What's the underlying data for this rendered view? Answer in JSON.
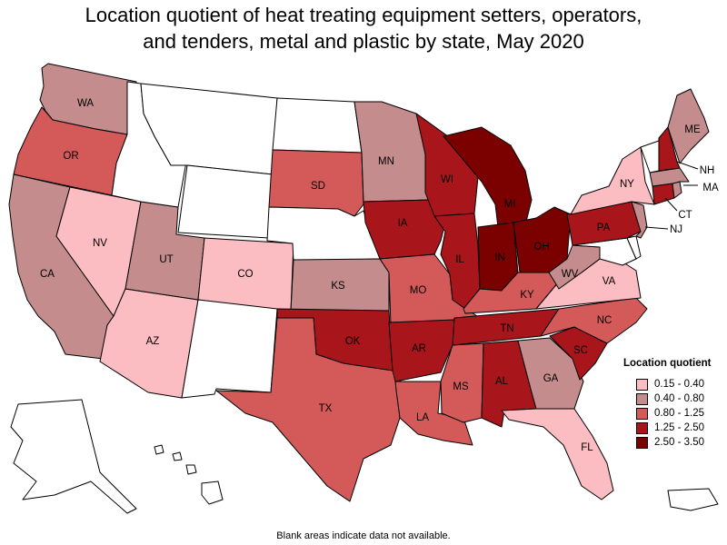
{
  "title_lines": [
    "Location quotient of heat treating equipment setters, operators,",
    "and tenders, metal and plastic by state, May 2020"
  ],
  "legend": {
    "title": "Location quotient",
    "items": [
      {
        "label": "0.15 - 0.40",
        "color": "#fbbcc2"
      },
      {
        "label": "0.40 - 0.80",
        "color": "#c48c8c"
      },
      {
        "label": "0.80 - 1.25",
        "color": "#d45a5a"
      },
      {
        "label": "1.25 - 2.50",
        "color": "#a8161c"
      },
      {
        "label": "2.50 - 3.50",
        "color": "#7b0000"
      }
    ]
  },
  "footnote": "Blank areas indicate data not available.",
  "no_data_color": "#ffffff",
  "states": [
    {
      "abbr": "WA",
      "class": 1
    },
    {
      "abbr": "OR",
      "class": 2
    },
    {
      "abbr": "CA",
      "class": 1
    },
    {
      "abbr": "NV",
      "class": 0
    },
    {
      "abbr": "AZ",
      "class": 0
    },
    {
      "abbr": "UT",
      "class": 1
    },
    {
      "abbr": "CO",
      "class": 0
    },
    {
      "abbr": "ID",
      "class": null
    },
    {
      "abbr": "MT",
      "class": null
    },
    {
      "abbr": "WY",
      "class": null
    },
    {
      "abbr": "NM",
      "class": null
    },
    {
      "abbr": "ND",
      "class": null
    },
    {
      "abbr": "SD",
      "class": 2
    },
    {
      "abbr": "NE",
      "class": null
    },
    {
      "abbr": "KS",
      "class": 1
    },
    {
      "abbr": "OK",
      "class": 3
    },
    {
      "abbr": "TX",
      "class": 2
    },
    {
      "abbr": "MN",
      "class": 1
    },
    {
      "abbr": "IA",
      "class": 3
    },
    {
      "abbr": "MO",
      "class": 2
    },
    {
      "abbr": "AR",
      "class": 3
    },
    {
      "abbr": "LA",
      "class": 2
    },
    {
      "abbr": "WI",
      "class": 3
    },
    {
      "abbr": "IL",
      "class": 3
    },
    {
      "abbr": "MS",
      "class": 2
    },
    {
      "abbr": "MI",
      "class": 4
    },
    {
      "abbr": "IN",
      "class": 4
    },
    {
      "abbr": "OH",
      "class": 4
    },
    {
      "abbr": "KY",
      "class": 2
    },
    {
      "abbr": "TN",
      "class": 3
    },
    {
      "abbr": "AL",
      "class": 3
    },
    {
      "abbr": "GA",
      "class": 1
    },
    {
      "abbr": "FL",
      "class": 0
    },
    {
      "abbr": "SC",
      "class": 3
    },
    {
      "abbr": "NC",
      "class": 2
    },
    {
      "abbr": "VA",
      "class": 0
    },
    {
      "abbr": "WV",
      "class": 1
    },
    {
      "abbr": "PA",
      "class": 3
    },
    {
      "abbr": "NY",
      "class": 0
    },
    {
      "abbr": "NJ",
      "class": 1
    },
    {
      "abbr": "CT",
      "class": 3
    },
    {
      "abbr": "MA",
      "class": 1
    },
    {
      "abbr": "NH",
      "class": 3
    },
    {
      "abbr": "ME",
      "class": 1
    },
    {
      "abbr": "VT",
      "class": null
    },
    {
      "abbr": "RI",
      "class": 1
    },
    {
      "abbr": "DE",
      "class": null
    },
    {
      "abbr": "MD",
      "class": null
    },
    {
      "abbr": "AK",
      "class": null
    },
    {
      "abbr": "HI",
      "class": null
    },
    {
      "abbr": "PR",
      "class": null
    }
  ]
}
